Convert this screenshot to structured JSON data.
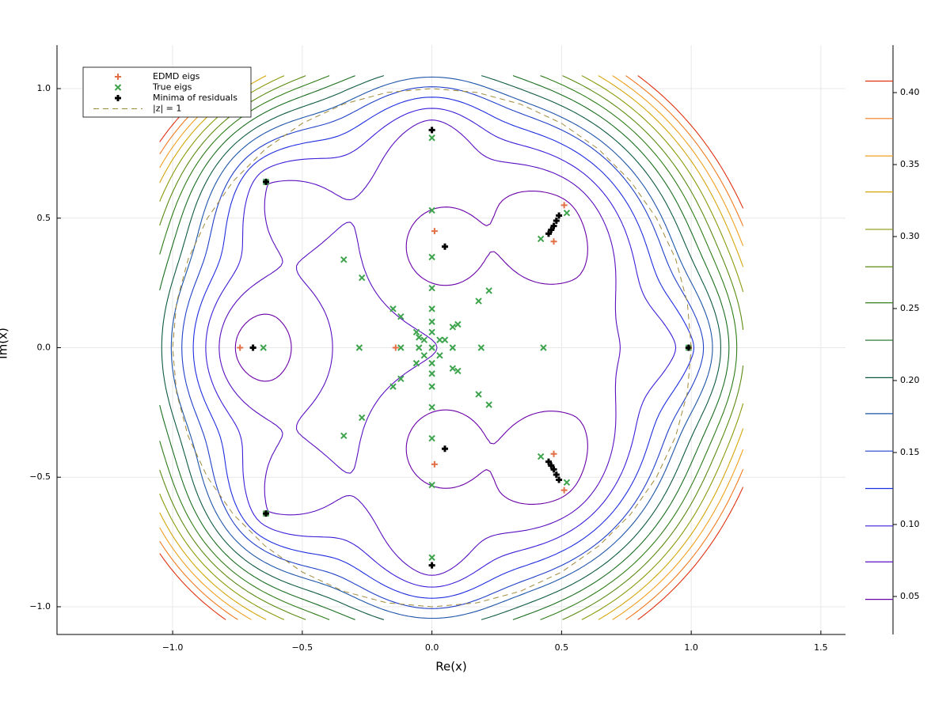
{
  "chart_data": {
    "type": "contour-scatter",
    "xlabel": "Re(x)",
    "ylabel": "Im(x)",
    "xlim": [
      -1.446,
      1.595
    ],
    "ylim": [
      -1.107,
      1.168
    ],
    "xticks": [
      {
        "value": -1,
        "label": "−1.0"
      },
      {
        "value": -0.5,
        "label": "−0.5"
      },
      {
        "value": 0,
        "label": "0.0"
      },
      {
        "value": 0.5,
        "label": "0.5"
      },
      {
        "value": 1,
        "label": "1.0"
      },
      {
        "value": 1.5,
        "label": "1.5"
      }
    ],
    "yticks": [
      {
        "value": -1,
        "label": "−1.0"
      },
      {
        "value": -0.5,
        "label": "−0.5"
      },
      {
        "value": 0,
        "label": "0.0"
      },
      {
        "value": 0.5,
        "label": "0.5"
      },
      {
        "value": 1,
        "label": "1.0"
      }
    ],
    "grid": true,
    "legend": "top-left",
    "clim": [
      0.0236,
      0.433
    ],
    "cticks": [
      0.05,
      {
        "value": 0.1,
        "label": "0.10"
      },
      0.15,
      {
        "value": 0.2,
        "label": "0.20"
      },
      0.25,
      {
        "value": 0.3,
        "label": "0.30"
      },
      0.35,
      {
        "value": 0.4,
        "label": "0.40"
      }
    ],
    "contour_levels": [
      0.048,
      0.074,
      0.099,
      0.125,
      0.151,
      0.177,
      0.202,
      0.228,
      0.254,
      0.279,
      0.305,
      0.331,
      0.356,
      0.382,
      0.408
    ],
    "contour_colors": [
      "#6a00a8",
      "#5a0fc0",
      "#3a1fd8",
      "#1f2ee0",
      "#2040c8",
      "#1e55a8",
      "#0e5a40",
      "#1a6e20",
      "#2f7d18",
      "#5a8a10",
      "#8a9a0a",
      "#d4a60a",
      "#f0a020",
      "#f07a20",
      "#e03010"
    ],
    "series": [
      {
        "name": "EDMD eigs",
        "marker": "plus",
        "color": "#e26f46",
        "x": [
          -0.74,
          -0.14,
          0.01,
          0.01,
          0.51,
          0.47,
          0.47,
          0.51,
          0.99,
          -0.64,
          -0.64,
          0,
          0,
          -0.69
        ],
        "values": [
          0,
          0,
          0.45,
          -0.45,
          0.55,
          0.41,
          -0.41,
          -0.55,
          0,
          0.64,
          -0.64,
          0.84,
          -0.84,
          0
        ]
      },
      {
        "name": "True eigs",
        "marker": "cross",
        "color": "#3da44d",
        "x": [
          -0.64,
          -0.64,
          -0.65,
          -0.28,
          0,
          0,
          0,
          0,
          0,
          0,
          0,
          0,
          0,
          0,
          0,
          0,
          0,
          0,
          -0.34,
          -0.34,
          -0.27,
          -0.27,
          0.18,
          0.18,
          0.22,
          0.22,
          -0.15,
          -0.15,
          -0.12,
          -0.12,
          -0.06,
          -0.06,
          0.08,
          0.08,
          0.1,
          0.1,
          0.42,
          0.42,
          0.52,
          0.52,
          0.43,
          0.19,
          0.08,
          -0.12,
          -0.05,
          0,
          0.99,
          0.03,
          -0.03,
          0.03,
          -0.03,
          -0.05,
          0.05
        ],
        "values": [
          0.64,
          -0.64,
          0,
          0,
          0.81,
          -0.81,
          0.53,
          -0.53,
          0.35,
          -0.35,
          0.23,
          -0.23,
          0.15,
          -0.15,
          0.1,
          -0.1,
          0.06,
          -0.06,
          0.34,
          -0.34,
          0.27,
          -0.27,
          0.18,
          -0.18,
          0.22,
          -0.22,
          0.15,
          -0.15,
          0.12,
          -0.12,
          0.06,
          -0.06,
          0.08,
          -0.08,
          0.09,
          -0.09,
          0.42,
          -0.42,
          0.52,
          -0.52,
          0,
          0,
          0,
          0,
          0,
          0,
          0,
          0.03,
          -0.03,
          -0.03,
          0.03,
          0.04,
          0.03
        ]
      },
      {
        "name": "Minima of residuals",
        "marker": "bold-plus",
        "color": "#000000",
        "x": [
          -0.64,
          -0.64,
          -0.69,
          0,
          0,
          0.05,
          0.05,
          0.99,
          0.45,
          0.46,
          0.47,
          0.48,
          0.49,
          0.45,
          0.46,
          0.47,
          0.48,
          0.49
        ],
        "values": [
          0.64,
          -0.64,
          0,
          0.84,
          -0.84,
          0.39,
          -0.39,
          0,
          0.44,
          0.455,
          0.47,
          0.49,
          0.51,
          -0.44,
          -0.455,
          -0.47,
          -0.49,
          -0.51
        ]
      },
      {
        "name": "|z| = 1",
        "marker": "dashed-line",
        "color": "#a08a3a",
        "x": [
          1,
          0.985,
          0.94,
          0.866,
          0.766,
          0.643,
          0.5,
          0.342,
          0.174,
          0,
          -0.174,
          -0.342,
          -0.5,
          -0.643,
          -0.766,
          -0.866,
          -0.94,
          -0.985,
          -1,
          -0.985,
          -0.94,
          -0.866,
          -0.766,
          -0.643,
          -0.5,
          -0.342,
          -0.174,
          0,
          0.174,
          0.342,
          0.5,
          0.643,
          0.766,
          0.866,
          0.94,
          0.985,
          1
        ],
        "values": [
          0,
          0.174,
          0.342,
          0.5,
          0.643,
          0.766,
          0.866,
          0.94,
          0.985,
          1,
          0.985,
          0.94,
          0.866,
          0.766,
          0.643,
          0.5,
          0.342,
          0.174,
          0,
          -0.174,
          -0.342,
          -0.5,
          -0.643,
          -0.766,
          -0.866,
          -0.94,
          -0.985,
          -1,
          -0.985,
          -0.94,
          -0.866,
          -0.766,
          -0.643,
          -0.5,
          -0.342,
          -0.174,
          0
        ]
      }
    ]
  }
}
